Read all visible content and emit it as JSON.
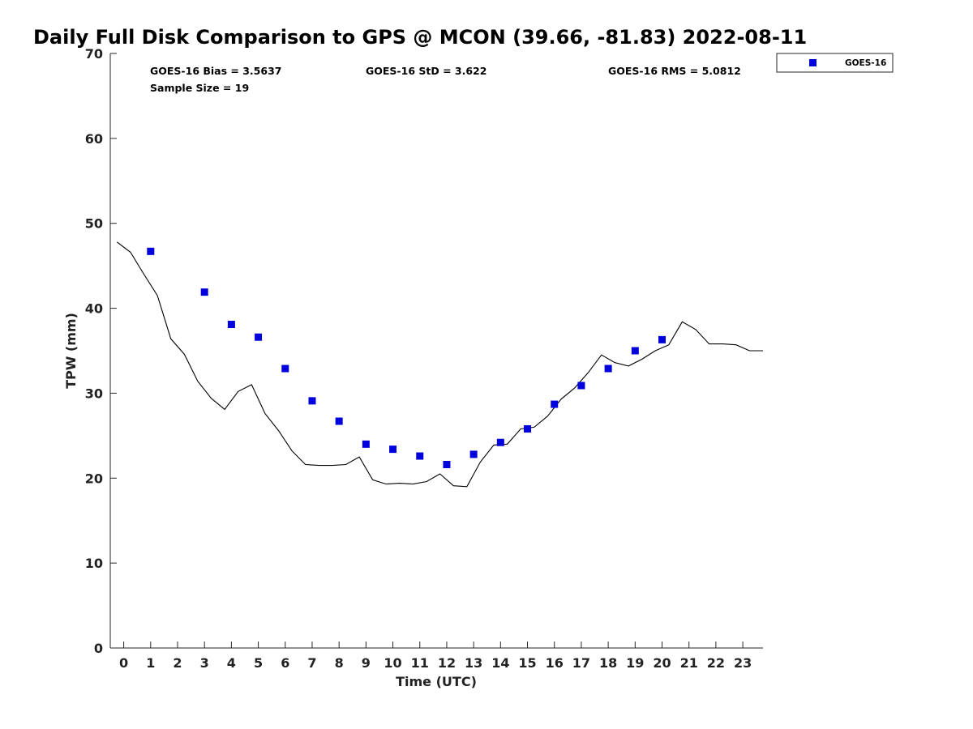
{
  "chart_data": {
    "type": "scatter",
    "title": "Daily Full Disk Comparison to GPS @ MCON (39.66, -81.83) 2022-08-11",
    "xlabel": "Time (UTC)",
    "ylabel": "TPW (mm)",
    "xlim": [
      -0.5,
      23.75
    ],
    "ylim": [
      0,
      70
    ],
    "x_ticks": [
      0,
      1,
      2,
      3,
      4,
      5,
      6,
      7,
      8,
      9,
      10,
      11,
      12,
      13,
      14,
      15,
      16,
      17,
      18,
      19,
      20,
      21,
      22,
      23
    ],
    "y_ticks": [
      0,
      10,
      20,
      30,
      40,
      50,
      60,
      70
    ],
    "grid": false,
    "legend": {
      "position": "outside-top-right",
      "entries": [
        "GOES-16"
      ]
    },
    "stats": {
      "bias": "GOES-16 Bias = 3.5637",
      "std": "GOES-16 StD = 3.622",
      "rms": "GOES-16 RMS = 5.0812",
      "sample_size": "Sample Size = 19"
    },
    "series": [
      {
        "name": "GOES-16",
        "kind": "scatter",
        "marker": "square",
        "color": "#0000dd",
        "x": [
          1,
          3,
          4,
          5,
          6,
          7,
          8,
          9,
          10,
          11,
          12,
          13,
          14,
          15,
          16,
          17,
          18,
          19,
          20
        ],
        "y": [
          46.7,
          41.9,
          38.1,
          36.6,
          32.9,
          29.1,
          26.7,
          24.0,
          23.4,
          22.6,
          21.6,
          22.8,
          24.2,
          25.8,
          28.7,
          30.9,
          32.9,
          35.0,
          36.3
        ]
      },
      {
        "kind": "line",
        "color": "#000000",
        "x": [
          -0.25,
          0.25,
          0.75,
          1.25,
          1.75,
          2.25,
          2.75,
          3.25,
          3.75,
          4.25,
          4.75,
          5.25,
          5.75,
          6.25,
          6.75,
          7.25,
          7.75,
          8.25,
          8.75,
          9.25,
          9.75,
          10.25,
          10.75,
          11.25,
          11.75,
          12.25,
          12.75,
          13.25,
          13.75,
          14.25,
          14.75,
          15.25,
          15.75,
          16.25,
          16.75,
          17.25,
          17.75,
          18.25,
          18.75,
          19.25,
          19.75,
          20.25,
          20.75,
          21.25,
          21.75,
          22.25,
          22.75,
          23.25,
          23.75
        ],
        "y": [
          47.8,
          46.6,
          44.0,
          41.5,
          36.4,
          34.6,
          31.4,
          29.4,
          28.1,
          30.2,
          31.0,
          27.6,
          25.6,
          23.2,
          21.6,
          21.5,
          21.5,
          21.6,
          22.5,
          19.8,
          19.3,
          19.4,
          19.3,
          19.6,
          20.5,
          19.1,
          19.0,
          21.9,
          23.9,
          24.0,
          25.8,
          26.0,
          27.3,
          29.3,
          30.6,
          32.4,
          34.5,
          33.6,
          33.2,
          34.0,
          35.0,
          35.7,
          38.4,
          37.5,
          35.8,
          35.8,
          35.7,
          35.0,
          35.0
        ]
      }
    ]
  }
}
